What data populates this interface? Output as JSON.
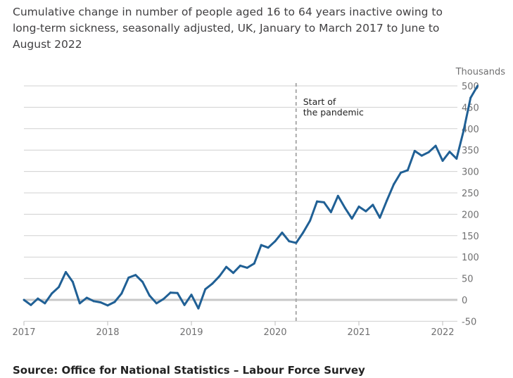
{
  "chart_data": {
    "type": "line",
    "title": "Cumulative change in number of people aged 16 to 64 years inactive owing to long-term sickness, seasonally adjusted, UK, January to March 2017 to June to August 2022",
    "ylabel": "Thousands",
    "xlabel": "",
    "ylim": [
      -50,
      500
    ],
    "yticks": [
      -50,
      0,
      50,
      100,
      150,
      200,
      250,
      300,
      350,
      400,
      450,
      500
    ],
    "xticks": [
      "2017",
      "2018",
      "2019",
      "2020",
      "2021",
      "2022"
    ],
    "grid": true,
    "x_start": "2017-01",
    "values": [
      0,
      -12,
      3,
      -8,
      15,
      30,
      65,
      42,
      -8,
      5,
      -3,
      -6,
      -13,
      -5,
      15,
      52,
      58,
      42,
      10,
      -8,
      2,
      17,
      16,
      -12,
      12,
      -20,
      25,
      38,
      55,
      77,
      63,
      80,
      75,
      85,
      128,
      122,
      137,
      157,
      137,
      133,
      157,
      185,
      230,
      228,
      205,
      243,
      215,
      190,
      218,
      207,
      222,
      192,
      232,
      270,
      297,
      303,
      348,
      337,
      345,
      360,
      325,
      346,
      330,
      395,
      472,
      500
    ],
    "line_color": "#206095",
    "annotation": {
      "text_line1": "Start of",
      "text_line2": "the pandemic",
      "x": "2020-04"
    }
  },
  "source": "Source: Office for National Statistics – Labour Force Survey"
}
